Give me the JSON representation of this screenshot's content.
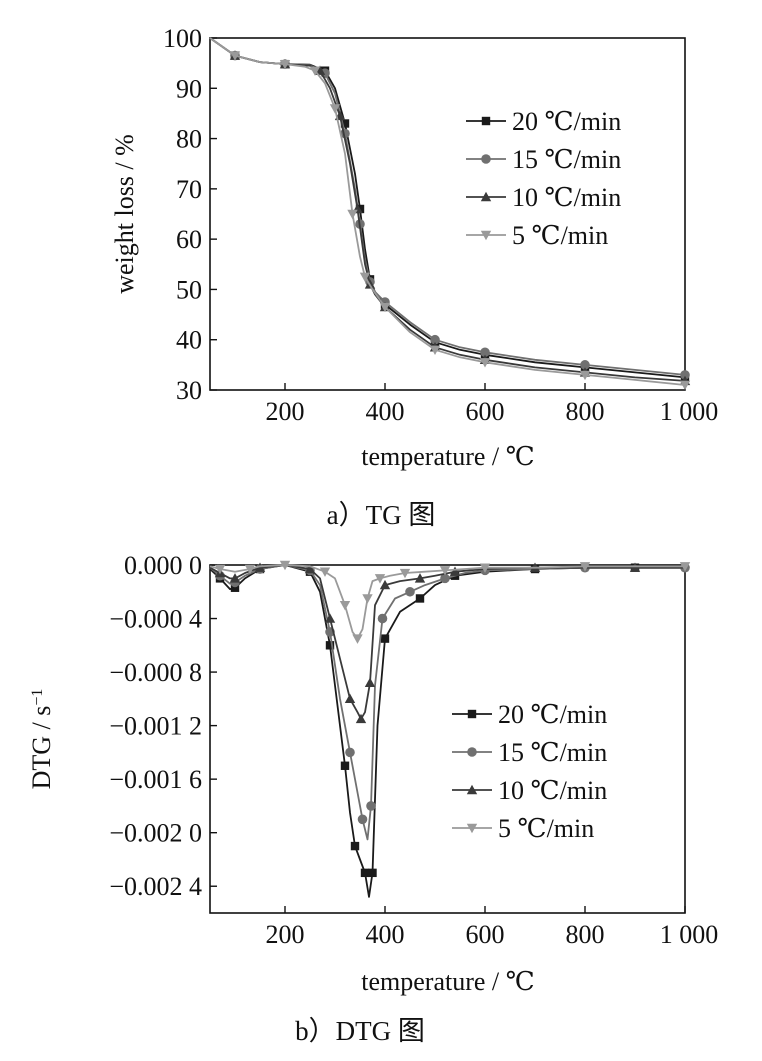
{
  "chart_data": [
    {
      "type": "line",
      "title": "",
      "xlabel": "temperature / ℃",
      "ylabel": "weight loss / %",
      "caption": "a）TG 图",
      "xlim": [
        50,
        1000
      ],
      "ylim": [
        30,
        100
      ],
      "xticks": [
        200,
        400,
        600,
        800,
        1000
      ],
      "xtick_labels": [
        "200",
        "400",
        "600",
        "800",
        "1 000"
      ],
      "yticks": [
        30,
        40,
        50,
        60,
        70,
        80,
        90,
        100
      ],
      "ytick_labels": [
        "30",
        "40",
        "50",
        "60",
        "70",
        "80",
        "90",
        "100"
      ],
      "grid": false,
      "legend_position": "right",
      "series": [
        {
          "name": "20 ℃/min",
          "marker": "square",
          "color": "#1a1a1a",
          "x": [
            50,
            100,
            150,
            200,
            250,
            280,
            300,
            320,
            340,
            350,
            360,
            370,
            380,
            400,
            450,
            500,
            550,
            600,
            700,
            800,
            900,
            1000
          ],
          "y": [
            100,
            96.5,
            95.2,
            94.8,
            94.7,
            93.5,
            90,
            83,
            73,
            66,
            58,
            52,
            49.5,
            47,
            43,
            39.5,
            38,
            37,
            35.5,
            34.5,
            33.5,
            32.5
          ]
        },
        {
          "name": "15 ℃/min",
          "marker": "circle",
          "color": "#707070",
          "x": [
            50,
            100,
            150,
            200,
            250,
            280,
            300,
            320,
            340,
            350,
            360,
            370,
            380,
            400,
            450,
            500,
            550,
            600,
            700,
            800,
            900,
            1000
          ],
          "y": [
            100,
            96.5,
            95.2,
            94.8,
            94.6,
            93,
            89,
            81,
            70,
            63,
            56,
            51.5,
            49.5,
            47.5,
            43.5,
            40,
            38.5,
            37.5,
            36,
            35,
            34,
            33
          ]
        },
        {
          "name": "10 ℃/min",
          "marker": "triangle-up",
          "color": "#3a3a3a",
          "x": [
            50,
            100,
            150,
            200,
            250,
            270,
            290,
            310,
            330,
            345,
            360,
            370,
            380,
            400,
            450,
            500,
            550,
            600,
            700,
            800,
            900,
            1000
          ],
          "y": [
            100,
            96.5,
            95.2,
            94.8,
            94.5,
            93.5,
            90,
            84.5,
            75,
            66,
            55,
            51,
            49,
            46.5,
            42,
            38.5,
            37,
            36,
            34.5,
            33.5,
            32.5,
            31.8
          ]
        },
        {
          "name": "5 ℃/min",
          "marker": "triangle-down",
          "color": "#9a9a9a",
          "x": [
            50,
            100,
            150,
            200,
            240,
            260,
            280,
            300,
            320,
            335,
            350,
            360,
            375,
            400,
            450,
            500,
            550,
            600,
            700,
            800,
            900,
            1000
          ],
          "y": [
            100,
            96.5,
            95.2,
            94.8,
            94.3,
            93.5,
            91,
            86,
            77,
            65,
            56.5,
            52.5,
            50,
            46.5,
            41.5,
            38,
            36.5,
            35.5,
            34,
            33,
            32,
            31
          ]
        }
      ]
    },
    {
      "type": "line",
      "title": "",
      "xlabel": "temperature / ℃",
      "ylabel": "DTG / s",
      "ylabel_superscript": "−1",
      "caption": "b）DTG 图",
      "xlim": [
        50,
        1000
      ],
      "ylim": [
        -0.0026,
        0
      ],
      "xticks": [
        200,
        400,
        600,
        800,
        1000
      ],
      "xtick_labels": [
        "200",
        "400",
        "600",
        "800",
        "1 000"
      ],
      "yticks": [
        0,
        -0.0004,
        -0.0008,
        -0.0012,
        -0.0016,
        -0.002,
        -0.0024
      ],
      "ytick_labels": [
        "0.000 0",
        "−0.000 4",
        "−0.000 8",
        "−0.001 2",
        "−0.001 6",
        "−0.002 0",
        "−0.002 4"
      ],
      "grid": false,
      "legend_position": "right",
      "series": [
        {
          "name": "20 ℃/min",
          "marker": "square",
          "color": "#1a1a1a",
          "x": [
            50,
            70,
            90,
            100,
            120,
            150,
            200,
            250,
            270,
            290,
            310,
            320,
            330,
            340,
            350,
            360,
            368,
            375,
            385,
            400,
            430,
            470,
            500,
            540,
            600,
            700,
            800,
            900,
            1000
          ],
          "y": [
            -3e-05,
            -0.0001,
            -0.00018,
            -0.00017,
            -0.0001,
            -3e-05,
            0,
            -5e-05,
            -0.0002,
            -0.0006,
            -0.0012,
            -0.0015,
            -0.00185,
            -0.0021,
            -0.0022,
            -0.0023,
            -0.00248,
            -0.0023,
            -0.0012,
            -0.00055,
            -0.00035,
            -0.00025,
            -0.00015,
            -8e-05,
            -5e-05,
            -3e-05,
            -2e-05,
            -2e-05,
            -2e-05
          ]
        },
        {
          "name": "15 ℃/min",
          "marker": "circle",
          "color": "#707070",
          "x": [
            50,
            70,
            90,
            100,
            120,
            150,
            200,
            250,
            270,
            290,
            310,
            330,
            345,
            355,
            365,
            372,
            380,
            395,
            420,
            450,
            480,
            520,
            560,
            600,
            700,
            800,
            900,
            1000
          ],
          "y": [
            -2e-05,
            -8e-05,
            -0.00014,
            -0.00013,
            -8e-05,
            -3e-05,
            0,
            -4e-05,
            -0.00015,
            -0.0005,
            -0.001,
            -0.0014,
            -0.0017,
            -0.0019,
            -0.00205,
            -0.0018,
            -0.0009,
            -0.0004,
            -0.00025,
            -0.0002,
            -0.00015,
            -0.0001,
            -6e-05,
            -4e-05,
            -3e-05,
            -2e-05,
            -2e-05,
            -2e-05
          ]
        },
        {
          "name": "10 ℃/min",
          "marker": "triangle-up",
          "color": "#3a3a3a",
          "x": [
            50,
            70,
            90,
            100,
            120,
            150,
            200,
            250,
            270,
            290,
            310,
            330,
            345,
            352,
            360,
            370,
            380,
            400,
            430,
            470,
            500,
            540,
            600,
            700,
            800,
            900,
            1000
          ],
          "y": [
            -2e-05,
            -6e-05,
            -0.0001,
            -0.0001,
            -6e-05,
            -2e-05,
            0,
            -3e-05,
            -0.0001,
            -0.0004,
            -0.0007,
            -0.001,
            -0.0011,
            -0.00115,
            -0.0011,
            -0.00088,
            -0.0003,
            -0.00015,
            -0.00012,
            -0.0001,
            -8e-05,
            -5e-05,
            -3e-05,
            -2e-05,
            -2e-05,
            -2e-05,
            -2e-05
          ]
        },
        {
          "name": "5 ℃/min",
          "marker": "triangle-down",
          "color": "#9a9a9a",
          "x": [
            50,
            70,
            100,
            130,
            150,
            200,
            250,
            280,
            300,
            320,
            335,
            345,
            355,
            365,
            375,
            390,
            410,
            440,
            480,
            520,
            560,
            600,
            700,
            800,
            900,
            1000
          ],
          "y": [
            -1e-05,
            -3e-05,
            -5e-05,
            -3e-05,
            -1e-05,
            0,
            -1e-05,
            -5e-05,
            -0.0001,
            -0.0003,
            -0.0005,
            -0.00055,
            -0.00048,
            -0.00025,
            -0.00012,
            -0.0001,
            -8e-05,
            -6e-05,
            -5e-05,
            -4e-05,
            -3e-05,
            -2e-05,
            -2e-05,
            -1e-05,
            -1e-05,
            -1e-05
          ]
        }
      ]
    }
  ]
}
